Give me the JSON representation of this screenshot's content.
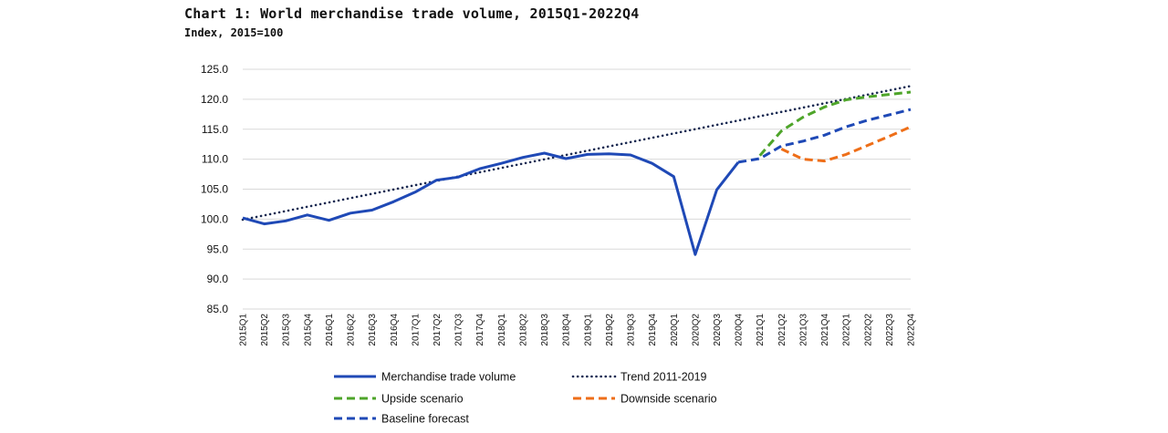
{
  "title": "Chart 1: World merchandise trade volume, 2015Q1-2022Q4",
  "subtitle": "Index, 2015=100",
  "colors": {
    "actual": "#1f49b6",
    "trend": "#1a2a52",
    "upside": "#4ea52a",
    "downside": "#ee6e18",
    "baseline": "#1f49b6",
    "grid": "#d9d9d9"
  },
  "chart_data": {
    "type": "line",
    "ylim": [
      85,
      125
    ],
    "yticks": [
      "85.0",
      "90.0",
      "95.0",
      "100.0",
      "105.0",
      "110.0",
      "115.0",
      "120.0",
      "125.0"
    ],
    "categories": [
      "2015Q1",
      "2015Q2",
      "2015Q3",
      "2015Q4",
      "2016Q1",
      "2016Q2",
      "2016Q3",
      "2016Q4",
      "2017Q1",
      "2017Q2",
      "2017Q3",
      "2017Q4",
      "2018Q1",
      "2018Q2",
      "2018Q3",
      "2018Q4",
      "2019Q1",
      "2019Q2",
      "2019Q3",
      "2019Q4",
      "2020Q1",
      "2020Q2",
      "2020Q3",
      "2020Q4",
      "2021Q1",
      "2021Q2",
      "2021Q3",
      "2021Q4",
      "2022Q1",
      "2022Q2",
      "2022Q3",
      "2022Q4"
    ],
    "grid": true,
    "legend_position": "bottom",
    "series": [
      {
        "key": "actual",
        "name": "Merchandise trade volume",
        "style": "solid",
        "x": [
          "2015Q1",
          "2015Q2",
          "2015Q3",
          "2015Q4",
          "2016Q1",
          "2016Q2",
          "2016Q3",
          "2016Q4",
          "2017Q1",
          "2017Q2",
          "2017Q3",
          "2017Q4",
          "2018Q1",
          "2018Q2",
          "2018Q3",
          "2018Q4",
          "2019Q1",
          "2019Q2",
          "2019Q3",
          "2019Q4",
          "2020Q1",
          "2020Q2",
          "2020Q3",
          "2020Q4"
        ],
        "values": [
          100.2,
          99.2,
          99.7,
          100.7,
          99.8,
          101.0,
          101.5,
          102.9,
          104.5,
          106.5,
          107.0,
          108.4,
          109.3,
          110.3,
          111.0,
          110.1,
          110.8,
          110.9,
          110.7,
          109.3,
          107.1,
          94.1,
          104.9,
          109.5
        ]
      },
      {
        "key": "trend",
        "name": "Trend 2011-2019",
        "style": "dotted",
        "x": [
          "2015Q1",
          "2022Q4"
        ],
        "values": [
          99.9,
          122.2
        ]
      },
      {
        "key": "upside",
        "name": "Upside scenario",
        "style": "dashed",
        "x": [
          "2021Q1",
          "2021Q2",
          "2021Q3",
          "2021Q4",
          "2022Q1",
          "2022Q2",
          "2022Q3",
          "2022Q4"
        ],
        "values": [
          110.6,
          114.7,
          117.0,
          118.7,
          119.9,
          120.4,
          120.8,
          121.2
        ]
      },
      {
        "key": "downside",
        "name": "Downside scenario",
        "style": "dashed",
        "x": [
          "2021Q2",
          "2021Q3",
          "2021Q4",
          "2022Q1",
          "2022Q2",
          "2022Q3",
          "2022Q4"
        ],
        "values": [
          111.7,
          110.0,
          109.7,
          110.8,
          112.3,
          113.8,
          115.4
        ]
      },
      {
        "key": "baseline",
        "name": "Baseline forecast",
        "style": "dashed",
        "x": [
          "2020Q4",
          "2021Q1",
          "2021Q2",
          "2021Q3",
          "2021Q4",
          "2022Q1",
          "2022Q2",
          "2022Q3",
          "2022Q4"
        ],
        "values": [
          109.5,
          110.1,
          112.2,
          113.0,
          114.0,
          115.4,
          116.5,
          117.4,
          118.3
        ]
      }
    ],
    "legend": [
      {
        "key": "actual",
        "label": "Merchandise trade volume"
      },
      {
        "key": "trend",
        "label": "Trend 2011-2019"
      },
      {
        "key": "upside",
        "label": "Upside scenario"
      },
      {
        "key": "downside",
        "label": "Downside scenario"
      },
      {
        "key": "baseline",
        "label": "Baseline forecast"
      }
    ]
  }
}
